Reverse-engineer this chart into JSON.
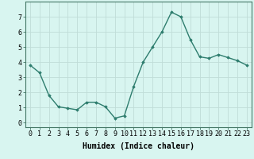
{
  "x": [
    0,
    1,
    2,
    3,
    4,
    5,
    6,
    7,
    8,
    9,
    10,
    11,
    12,
    13,
    14,
    15,
    16,
    17,
    18,
    19,
    20,
    21,
    22,
    23
  ],
  "y": [
    3.8,
    3.3,
    1.8,
    1.05,
    0.95,
    0.85,
    1.35,
    1.35,
    1.05,
    0.3,
    0.45,
    2.4,
    4.0,
    5.0,
    6.0,
    7.3,
    7.0,
    5.5,
    4.35,
    4.25,
    4.5,
    4.3,
    4.1,
    3.8
  ],
  "line_color": "#2e7d6e",
  "marker": "D",
  "marker_size": 1.8,
  "bg_color": "#d8f5f0",
  "grid_color": "#c0ddd8",
  "xlabel": "Humidex (Indice chaleur)",
  "xlim": [
    -0.5,
    23.5
  ],
  "ylim": [
    -0.3,
    8.0
  ],
  "yticks": [
    0,
    1,
    2,
    3,
    4,
    5,
    6,
    7
  ],
  "xticks": [
    0,
    1,
    2,
    3,
    4,
    5,
    6,
    7,
    8,
    9,
    10,
    11,
    12,
    13,
    14,
    15,
    16,
    17,
    18,
    19,
    20,
    21,
    22,
    23
  ],
  "xlabel_fontsize": 7,
  "tick_fontsize": 6,
  "line_width": 1.0,
  "axis_color": "#336655",
  "spine_color": "#447766"
}
